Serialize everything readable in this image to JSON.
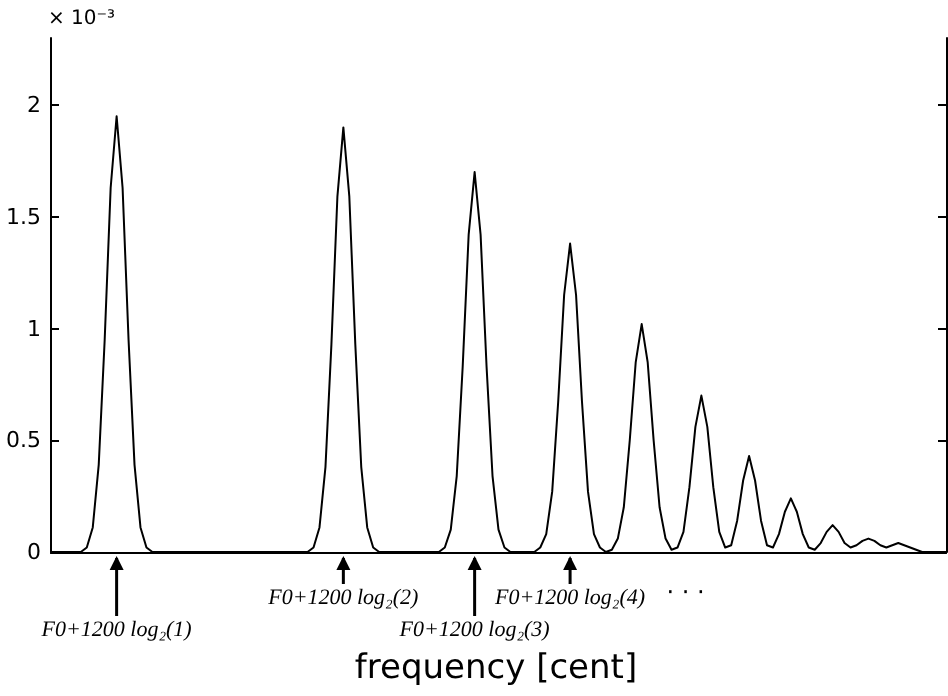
{
  "chart_data": {
    "type": "line",
    "xlabel": "frequency [cent]",
    "color": "#000000",
    "annotations": [
      "× 10⁻³",
      "F0+1200 log₂(1)",
      "F0+1200 log₂(2)",
      "F0+1200 log₂(3)",
      "F0+1200 log₂(4)",
      "· · ·"
    ],
    "ylim": [
      0,
      2.3
    ],
    "yticks": [
      0,
      0.5,
      1,
      1.5,
      2
    ],
    "categories": [
      null,
      null,
      null,
      null,
      null,
      null,
      null,
      null,
      null,
      null,
      null,
      null,
      null,
      null,
      null,
      null,
      null,
      null,
      null,
      null,
      null,
      null,
      null,
      null,
      null,
      null,
      null,
      null,
      null,
      null,
      null,
      null,
      null,
      null,
      null,
      null,
      null,
      null,
      null,
      null,
      null,
      null,
      null,
      null,
      null,
      null,
      null,
      null,
      null,
      null,
      null,
      null,
      null,
      null,
      null,
      null,
      null,
      null,
      null,
      null,
      null,
      null,
      null,
      null,
      null,
      null,
      null,
      null,
      null,
      null,
      null,
      null,
      null,
      null,
      null,
      null,
      null,
      null,
      null,
      null,
      null,
      null,
      null,
      null,
      null,
      null,
      null,
      null,
      null,
      null,
      null,
      null,
      null,
      null,
      null,
      null,
      null,
      null,
      null,
      null,
      null,
      null,
      null,
      null,
      null,
      null,
      null,
      null,
      null,
      null,
      null,
      null,
      null,
      null,
      null,
      null,
      null,
      null,
      null,
      null,
      null,
      null,
      null,
      null,
      null,
      null,
      null,
      null,
      null,
      null,
      null,
      null,
      null,
      null,
      null,
      null,
      null,
      null,
      null,
      null,
      null,
      null,
      null,
      null,
      null,
      null,
      null,
      null,
      null,
      null,
      null
    ],
    "values": [
      0,
      0,
      0,
      0,
      0,
      0,
      0.02,
      0.11,
      0.39,
      0.95,
      1.63,
      1.95,
      1.63,
      0.95,
      0.39,
      0.11,
      0.02,
      0,
      0,
      0,
      0,
      0,
      0,
      0,
      0,
      0,
      0,
      0,
      0,
      0,
      0,
      0,
      0,
      0,
      0,
      0,
      0,
      0,
      0,
      0,
      0,
      0,
      0,
      0,
      0.02,
      0.11,
      0.38,
      0.93,
      1.59,
      1.9,
      1.59,
      0.93,
      0.38,
      0.11,
      0.02,
      0,
      0,
      0,
      0,
      0,
      0,
      0,
      0,
      0,
      0,
      0,
      0.02,
      0.1,
      0.34,
      0.83,
      1.42,
      1.7,
      1.42,
      0.83,
      0.34,
      0.1,
      0.02,
      0,
      0,
      0,
      0,
      0,
      0.02,
      0.08,
      0.27,
      0.67,
      1.15,
      1.38,
      1.15,
      0.67,
      0.27,
      0.08,
      0.02,
      0,
      0.01,
      0.06,
      0.2,
      0.5,
      0.85,
      1.02,
      0.85,
      0.5,
      0.2,
      0.06,
      0.01,
      0.02,
      0.09,
      0.29,
      0.56,
      0.7,
      0.56,
      0.29,
      0.09,
      0.02,
      0.03,
      0.14,
      0.32,
      0.43,
      0.32,
      0.14,
      0.03,
      0.02,
      0.08,
      0.18,
      0.24,
      0.18,
      0.08,
      0.02,
      0.01,
      0.04,
      0.09,
      0.12,
      0.09,
      0.04,
      0.02,
      0.03,
      0.05,
      0.06,
      0.05,
      0.03,
      0.02,
      0.03,
      0.04,
      0.03,
      0.02,
      0.01,
      0,
      0,
      0,
      0,
      0
    ]
  }
}
